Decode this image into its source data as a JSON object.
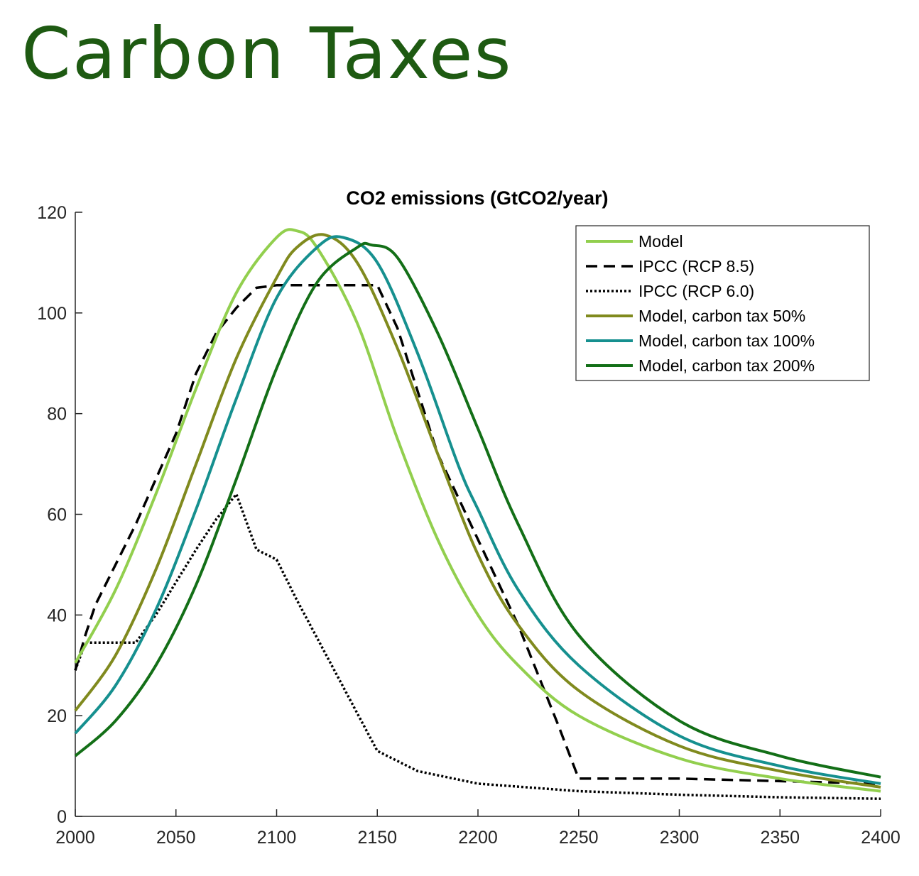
{
  "slide": {
    "title": "Carbon Taxes"
  },
  "colors": {
    "title": "#1e5a12",
    "model": "#92cf4e",
    "rcp85": "#000000",
    "rcp60": "#000000",
    "tax50": "#808a1e",
    "tax100": "#16908f",
    "tax200": "#136f17"
  },
  "chart_data": {
    "type": "line",
    "title": "CO2 emissions (GtCO2/year)",
    "xlabel": "",
    "ylabel": "",
    "xlim": [
      2000,
      2400
    ],
    "ylim": [
      0,
      120
    ],
    "xticks": [
      2000,
      2050,
      2100,
      2150,
      2200,
      2250,
      2300,
      2350,
      2400
    ],
    "yticks": [
      0,
      20,
      40,
      60,
      80,
      100,
      120
    ],
    "legend_position": "top-right",
    "series": [
      {
        "name": "Model",
        "style": "solid",
        "color": "#92cf4e",
        "x": [
          2000,
          2020,
          2040,
          2060,
          2080,
          2100,
          2110,
          2120,
          2140,
          2160,
          2180,
          2200,
          2220,
          2250,
          2300,
          2350,
          2400
        ],
        "y": [
          30.5,
          45,
          64,
          85,
          104,
          115,
          116.3,
          113,
          98,
          75,
          55,
          40,
          30,
          20,
          11.5,
          7.5,
          5
        ]
      },
      {
        "name": "IPCC (RCP 8.5)",
        "style": "dashed",
        "color": "#000000",
        "x": [
          2000,
          2005,
          2010,
          2030,
          2050,
          2060,
          2070,
          2080,
          2090,
          2100,
          2110,
          2150,
          2160,
          2180,
          2200,
          2220,
          2240,
          2250,
          2300,
          2400
        ],
        "y": [
          29,
          36,
          42,
          58,
          76,
          88,
          96,
          101,
          105,
          105.5,
          105.5,
          105.5,
          97,
          72,
          55,
          38,
          18,
          7.5,
          7.5,
          6.5
        ]
      },
      {
        "name": "IPCC (RCP 6.0)",
        "style": "dotted",
        "color": "#000000",
        "x": [
          2000,
          2005,
          2010,
          2030,
          2040,
          2060,
          2070,
          2080,
          2090,
          2100,
          2110,
          2130,
          2150,
          2170,
          2200,
          2250,
          2300,
          2350,
          2400
        ],
        "y": [
          29,
          34.5,
          34.5,
          34.5,
          40,
          53,
          59,
          64,
          53,
          51,
          43,
          28,
          13,
          9,
          6.5,
          5,
          4.3,
          3.8,
          3.5
        ]
      },
      {
        "name": "Model, carbon tax 50%",
        "style": "solid",
        "color": "#808a1e",
        "x": [
          2000,
          2020,
          2040,
          2060,
          2080,
          2100,
          2110,
          2124,
          2140,
          2160,
          2180,
          2200,
          2220,
          2250,
          2300,
          2350,
          2400
        ],
        "y": [
          21,
          32,
          49,
          70,
          91,
          107,
          113,
          115.5,
          110,
          93,
          72,
          52,
          38,
          25,
          14,
          9,
          5.8
        ]
      },
      {
        "name": "Model, carbon tax 100%",
        "style": "solid",
        "color": "#16908f",
        "x": [
          2000,
          2020,
          2040,
          2060,
          2080,
          2100,
          2120,
          2133,
          2150,
          2170,
          2190,
          2200,
          2220,
          2250,
          2300,
          2350,
          2400
        ],
        "y": [
          16.5,
          26,
          41,
          61,
          83,
          103,
          113,
          115,
          110,
          92,
          70,
          61,
          45,
          30,
          16,
          10,
          6.5
        ]
      },
      {
        "name": "Model, carbon tax 200%",
        "style": "solid",
        "color": "#136f17",
        "x": [
          2000,
          2020,
          2040,
          2060,
          2080,
          2100,
          2120,
          2140,
          2147,
          2160,
          2180,
          2200,
          2220,
          2250,
          2300,
          2350,
          2400
        ],
        "y": [
          12,
          19,
          30,
          46,
          67,
          89,
          106,
          113,
          113.5,
          111,
          96,
          77,
          58,
          36,
          19,
          12,
          7.8
        ]
      }
    ]
  }
}
